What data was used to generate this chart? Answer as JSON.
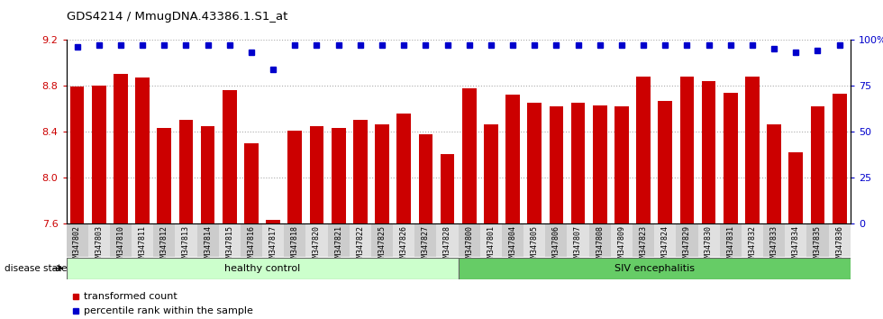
{
  "title": "GDS4214 / MmugDNA.43386.1.S1_at",
  "samples": [
    "GSM347802",
    "GSM347803",
    "GSM347810",
    "GSM347811",
    "GSM347812",
    "GSM347813",
    "GSM347814",
    "GSM347815",
    "GSM347816",
    "GSM347817",
    "GSM347818",
    "GSM347820",
    "GSM347821",
    "GSM347822",
    "GSM347825",
    "GSM347826",
    "GSM347827",
    "GSM347828",
    "GSM347800",
    "GSM347801",
    "GSM347804",
    "GSM347805",
    "GSM347806",
    "GSM347807",
    "GSM347808",
    "GSM347809",
    "GSM347823",
    "GSM347824",
    "GSM347829",
    "GSM347830",
    "GSM347831",
    "GSM347832",
    "GSM347833",
    "GSM347834",
    "GSM347835",
    "GSM347836"
  ],
  "bar_values": [
    8.79,
    8.8,
    8.9,
    8.87,
    8.43,
    8.5,
    8.45,
    8.76,
    8.3,
    7.63,
    8.41,
    8.45,
    8.43,
    8.5,
    8.46,
    8.56,
    8.38,
    8.2,
    8.78,
    8.46,
    8.72,
    8.65,
    8.62,
    8.65,
    8.63,
    8.62,
    8.88,
    8.67,
    8.88,
    8.84,
    8.74,
    8.88,
    8.46,
    8.22,
    8.62,
    8.73
  ],
  "percentile_values": [
    96,
    97,
    97,
    97,
    97,
    97,
    97,
    97,
    93,
    84,
    97,
    97,
    97,
    97,
    97,
    97,
    97,
    97,
    97,
    97,
    97,
    97,
    97,
    97,
    97,
    97,
    97,
    97,
    97,
    97,
    97,
    97,
    95,
    93,
    94,
    97
  ],
  "healthy_count": 18,
  "bar_color": "#cc0000",
  "percentile_color": "#0000cc",
  "ylim_left": [
    7.6,
    9.2
  ],
  "ylim_right": [
    0,
    100
  ],
  "yticks_left": [
    7.6,
    8.0,
    8.4,
    8.8,
    9.2
  ],
  "yticks_right": [
    0,
    25,
    50,
    75,
    100
  ],
  "ytick_labels_right": [
    "0",
    "25",
    "50",
    "75",
    "100%"
  ],
  "healthy_label": "healthy control",
  "siv_label": "SIV encephalitis",
  "disease_state_label": "disease state",
  "legend_bar_label": "transformed count",
  "legend_dot_label": "percentile rank within the sample",
  "healthy_color": "#ccffcc",
  "siv_color": "#66cc66",
  "bg_color": "#ffffff",
  "grid_color": "#aaaaaa"
}
